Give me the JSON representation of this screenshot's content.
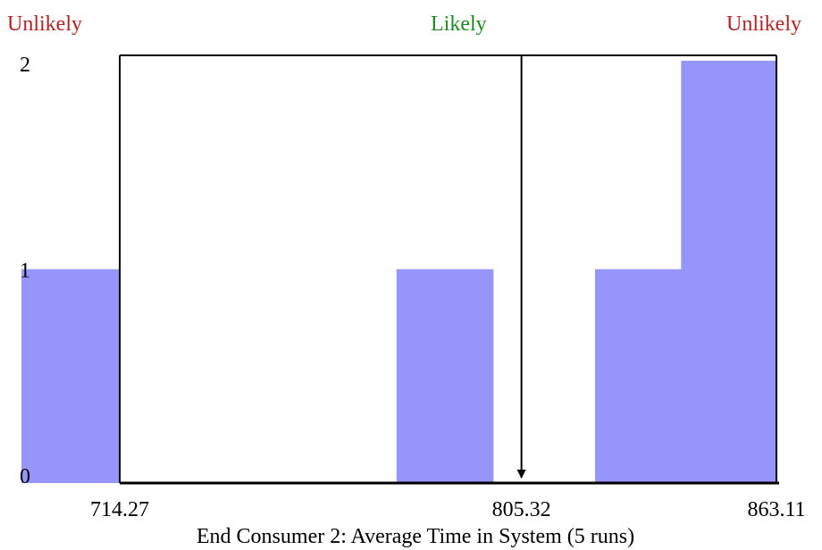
{
  "annotations": {
    "left": "Unlikely",
    "center": "Likely",
    "right": "Unlikely"
  },
  "colors": {
    "bar": "#9595fb",
    "unlikely": "#b22222",
    "likely": "#1e8a1e",
    "axis": "#000000"
  },
  "chart_data": {
    "type": "bar",
    "title": "",
    "xlabel": "End Consumer 2: Average Time in System (5 runs)",
    "ylabel": "",
    "ylim": [
      0,
      2
    ],
    "yticks": [
      "0",
      "1",
      "2"
    ],
    "bins": [
      {
        "x_start": 692.0,
        "x_end": 714.27,
        "value": 1
      },
      {
        "x_start": 777.0,
        "x_end": 799.0,
        "value": 1
      },
      {
        "x_start": 822.0,
        "x_end": 844.0,
        "value": 1
      },
      {
        "x_start": 841.5,
        "x_end": 863.11,
        "value": 2
      }
    ],
    "xticks": [
      {
        "value": 714.27,
        "label": "714.27"
      },
      {
        "value": 805.32,
        "label": "805.32"
      },
      {
        "value": 863.11,
        "label": "863.11"
      }
    ],
    "reference_lines": [
      {
        "x": 714.27
      },
      {
        "x": 805.32,
        "arrow": "down"
      },
      {
        "x": 863.11
      }
    ],
    "grid": false,
    "legend": "none"
  }
}
